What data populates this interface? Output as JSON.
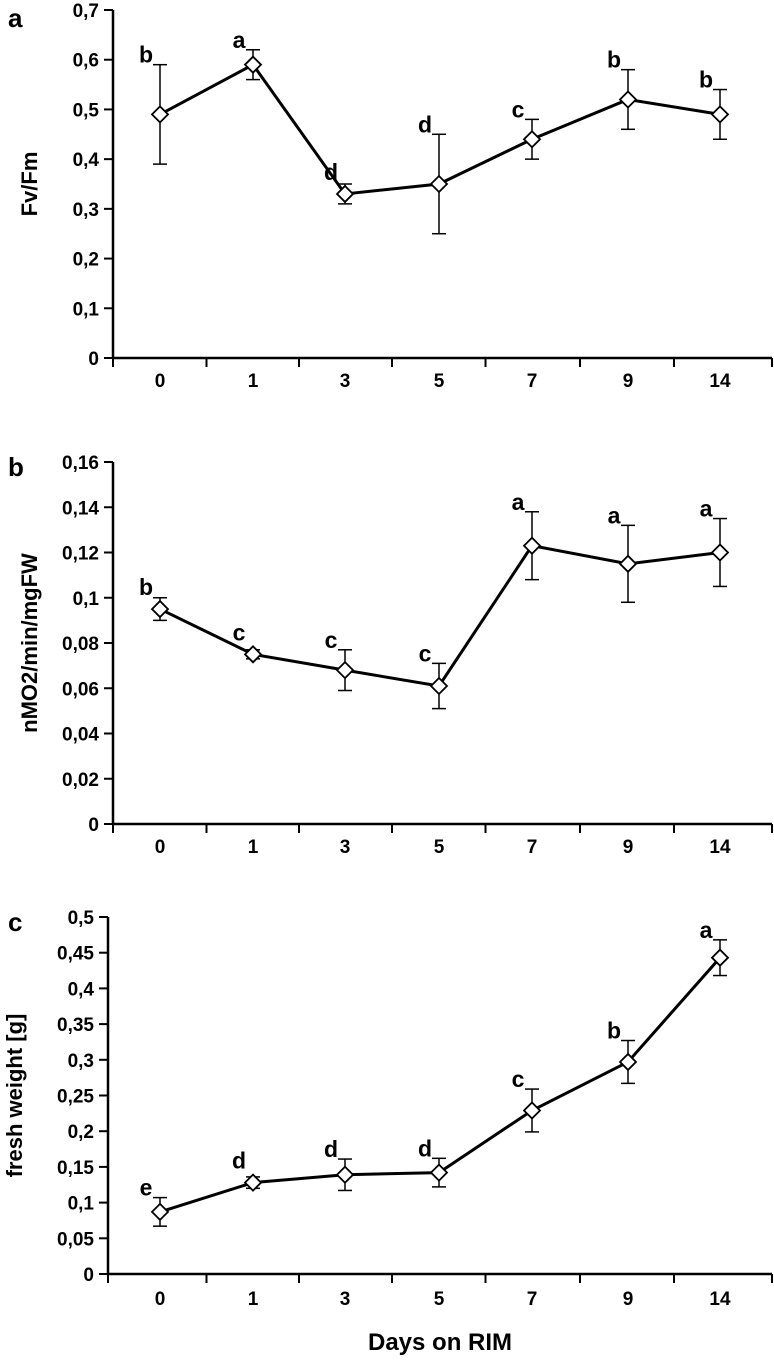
{
  "chart_data": [
    {
      "panel_label": "a",
      "type": "line",
      "ylabel": "Fv/Fm",
      "ylim": [
        0,
        0.7
      ],
      "yticks": [
        "0",
        "0,1",
        "0,2",
        "0,3",
        "0,4",
        "0,5",
        "0,6",
        "0,7"
      ],
      "categories": [
        "0",
        "1",
        "3",
        "5",
        "7",
        "9",
        "14"
      ],
      "values": [
        0.49,
        0.59,
        0.33,
        0.35,
        0.44,
        0.52,
        0.49
      ],
      "errors": [
        0.1,
        0.03,
        0.02,
        0.1,
        0.04,
        0.06,
        0.05
      ],
      "letters": [
        "b",
        "a",
        "d",
        "d",
        "c",
        "b",
        "b"
      ],
      "grid": false
    },
    {
      "panel_label": "b",
      "type": "line",
      "ylabel": "nMO2/min/mgFW",
      "ylim": [
        0,
        0.16
      ],
      "yticks": [
        "0",
        "0,02",
        "0,04",
        "0,06",
        "0,08",
        "0,1",
        "0,12",
        "0,14",
        "0,16"
      ],
      "categories": [
        "0",
        "1",
        "3",
        "5",
        "7",
        "9",
        "14"
      ],
      "values": [
        0.095,
        0.075,
        0.068,
        0.061,
        0.123,
        0.115,
        0.12
      ],
      "errors": [
        0.005,
        0.002,
        0.009,
        0.01,
        0.015,
        0.017,
        0.015
      ],
      "letters": [
        "b",
        "c",
        "c",
        "c",
        "a",
        "a",
        "a"
      ],
      "grid": false
    },
    {
      "panel_label": "c",
      "type": "line",
      "ylabel": "fresh weight [g]",
      "xlabel": "Days on RIM",
      "ylim": [
        0,
        0.5
      ],
      "yticks": [
        "0",
        "0,05",
        "0,1",
        "0,15",
        "0,2",
        "0,25",
        "0,3",
        "0,35",
        "0,4",
        "0,45",
        "0,5"
      ],
      "categories": [
        "0",
        "1",
        "3",
        "5",
        "7",
        "9",
        "14"
      ],
      "values": [
        0.087,
        0.128,
        0.139,
        0.142,
        0.229,
        0.297,
        0.443
      ],
      "errors": [
        0.02,
        0.008,
        0.022,
        0.02,
        0.03,
        0.03,
        0.025
      ],
      "letters": [
        "e",
        "d",
        "d",
        "d",
        "c",
        "b",
        "a"
      ],
      "grid": false
    }
  ]
}
